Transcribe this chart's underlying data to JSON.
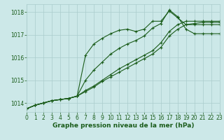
{
  "title": "Graphe pression niveau de la mer (hPa)",
  "bg_color": "#cce8e8",
  "grid_color": "#aacccc",
  "line_color": "#1a5c1a",
  "xlim": [
    0,
    23
  ],
  "ylim": [
    1013.6,
    1018.35
  ],
  "yticks": [
    1014,
    1015,
    1016,
    1017,
    1018
  ],
  "xticks": [
    0,
    1,
    2,
    3,
    4,
    5,
    6,
    7,
    8,
    9,
    10,
    11,
    12,
    13,
    14,
    15,
    16,
    17,
    18,
    19,
    20,
    21,
    22,
    23
  ],
  "series": [
    [
      1013.75,
      1013.9,
      1014.0,
      1014.1,
      1014.15,
      1014.2,
      1014.3,
      1016.1,
      1016.6,
      1016.85,
      1017.05,
      1017.2,
      1017.25,
      1017.15,
      1017.25,
      1017.6,
      1017.6,
      1018.05,
      1017.75,
      1017.45,
      1017.45,
      1017.45,
      1017.45,
      1017.45
    ],
    [
      1013.75,
      1013.9,
      1014.0,
      1014.1,
      1014.15,
      1014.2,
      1014.3,
      1015.0,
      1015.45,
      1015.8,
      1016.15,
      1016.4,
      1016.6,
      1016.75,
      1016.95,
      1017.3,
      1017.5,
      1018.1,
      1017.8,
      1017.25,
      1017.05,
      1017.05,
      1017.05,
      1017.05
    ],
    [
      1013.75,
      1013.9,
      1014.0,
      1014.1,
      1014.15,
      1014.2,
      1014.3,
      1014.55,
      1014.75,
      1015.0,
      1015.25,
      1015.5,
      1015.7,
      1015.9,
      1016.1,
      1016.3,
      1016.65,
      1017.15,
      1017.45,
      1017.6,
      1017.6,
      1017.6,
      1017.6,
      1017.6
    ],
    [
      1013.75,
      1013.9,
      1014.0,
      1014.1,
      1014.15,
      1014.2,
      1014.3,
      1014.5,
      1014.7,
      1014.95,
      1015.15,
      1015.35,
      1015.55,
      1015.75,
      1015.95,
      1016.15,
      1016.45,
      1016.95,
      1017.25,
      1017.45,
      1017.5,
      1017.55,
      1017.55,
      1017.55
    ]
  ],
  "marker": "+",
  "markersize": 3.5,
  "linewidth": 0.8,
  "xlabel_fontsize": 6.5,
  "tick_fontsize": 5.5
}
